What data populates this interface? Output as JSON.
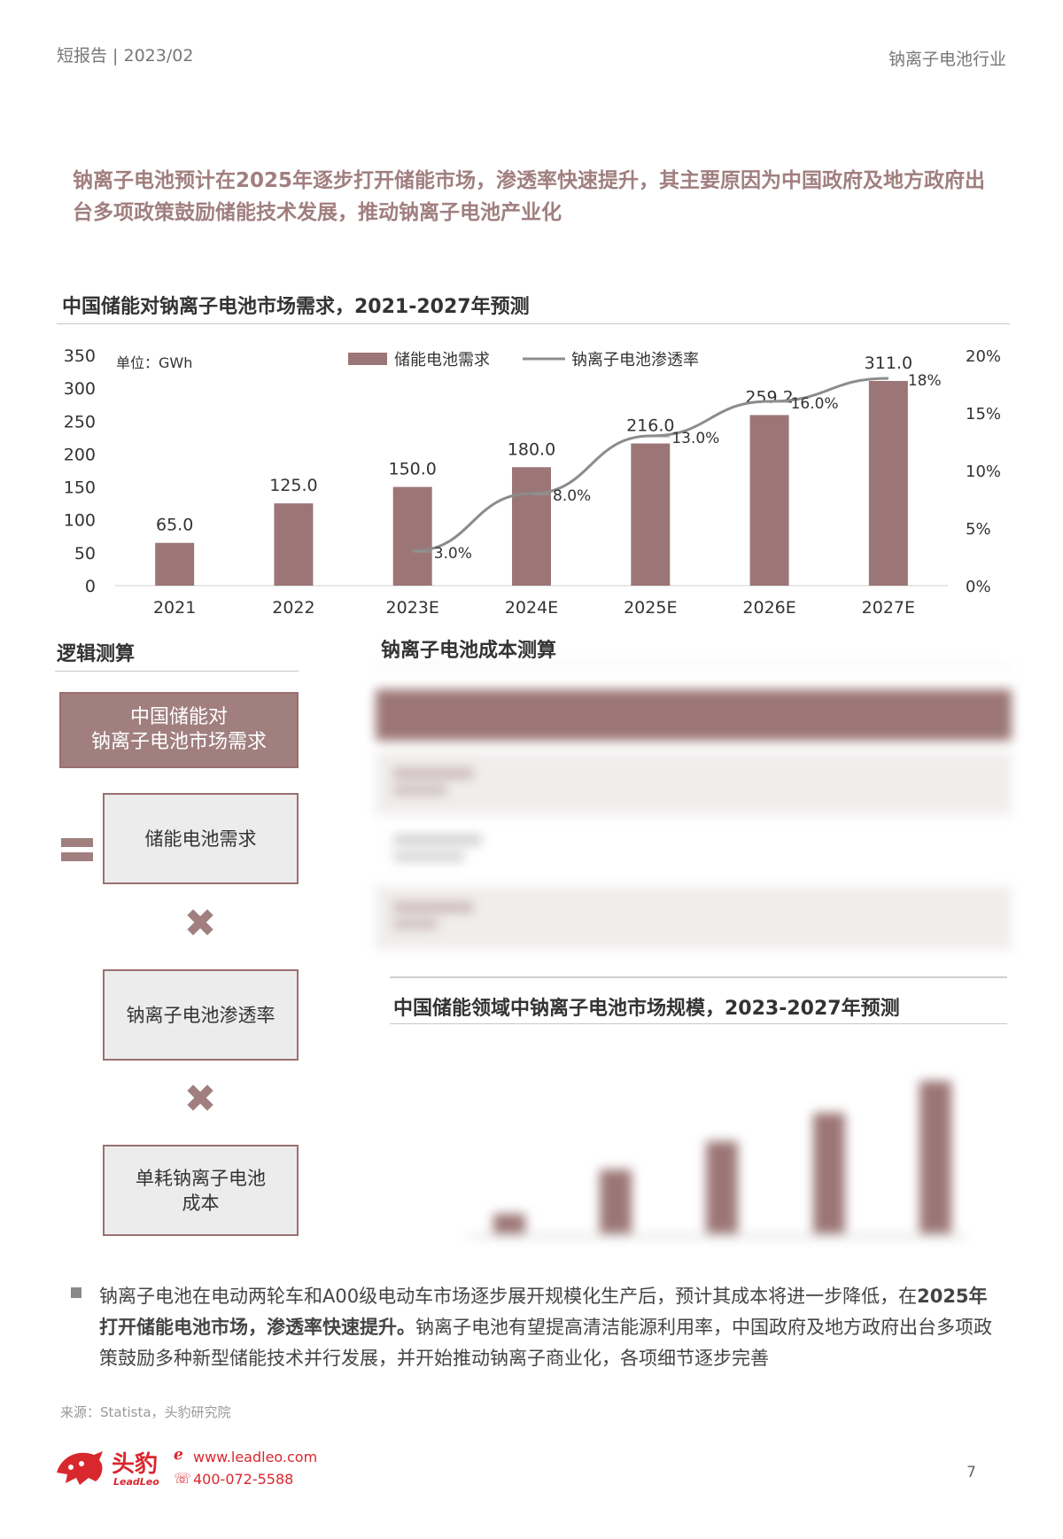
{
  "header": {
    "left": "短报告 | 2023/02",
    "right": "钠离子电池行业"
  },
  "lead": "钠离子电池预计在2025年逐步打开储能市场，渗透率快速提升，其主要原因为中国政府及地方政府出台多项政策鼓励储能技术发展，推动钠离子电池产业化",
  "chart1_title": "中国储能对钠离子电池市场需求，2021-2027年预测",
  "chart_data": {
    "type": "bar",
    "title": "中国储能对钠离子电池市场需求，2021-2027年预测",
    "unit_label": "单位：GWh",
    "categories": [
      "2021",
      "2022",
      "2023E",
      "2024E",
      "2025E",
      "2026E",
      "2027E"
    ],
    "series": [
      {
        "name": "储能电池需求",
        "type": "bar",
        "axis": "left",
        "values": [
          65.0,
          125.0,
          150.0,
          180.0,
          216.0,
          259.2,
          311.0
        ],
        "labels": [
          "65.0",
          "125.0",
          "150.0",
          "180.0",
          "216.0",
          "259.2",
          "311.0"
        ]
      },
      {
        "name": "钠离子电池渗透率",
        "type": "line",
        "axis": "right",
        "values": [
          null,
          null,
          3,
          8,
          13,
          16,
          18
        ],
        "labels": [
          "",
          "",
          "3.0%",
          "8.0%",
          "13.0%",
          "16.0%",
          "18%"
        ]
      }
    ],
    "y_left": {
      "ticks": [
        "0",
        "50",
        "100",
        "150",
        "200",
        "250",
        "300",
        "350"
      ],
      "range": [
        0,
        350
      ]
    },
    "y_right": {
      "ticks": [
        "0%",
        "5%",
        "10%",
        "15%",
        "20%"
      ],
      "range": [
        0,
        20
      ]
    },
    "legend_position": "top",
    "grid": false,
    "colors": {
      "bar": "#9c7676",
      "line": "#8c8c8c"
    }
  },
  "logic": {
    "title": "逻辑测算",
    "main_box": "中国储能对\n钠离子电池市场需求",
    "equals_icon": "equals-icon",
    "box1": "储能电池需求",
    "times_icon": "multiply-icon",
    "box2": "钠离子电池渗透率",
    "box3": "单耗钠离子电池\n成本"
  },
  "cost_table": {
    "title": "钠离子电池成本测算"
  },
  "chart2": {
    "title": "中国储能领域中钠离子电池市场规模，2023-2027年预测"
  },
  "footnote": {
    "part1": "钠离子电池在电动两轮车和A00级电动车市场逐步展开规模化生产后，预计其成本将进一步降低，在",
    "bold": "2025年打开储能电池市场，渗透率快速提升。",
    "part2": "钠离子电池有望提高清洁能源利用率，中国政府及地方政府出台多项政策鼓励多种新型储能技术并行发展，并开始推动钠离子商业化，各项细节逐步完善"
  },
  "source": "来源：Statista，头豹研究院",
  "brand": {
    "name_cn": "头豹",
    "name_en": "LeadLeo",
    "website": "www.leadleo.com",
    "phone": "400-072-5588"
  },
  "page_number": "7"
}
